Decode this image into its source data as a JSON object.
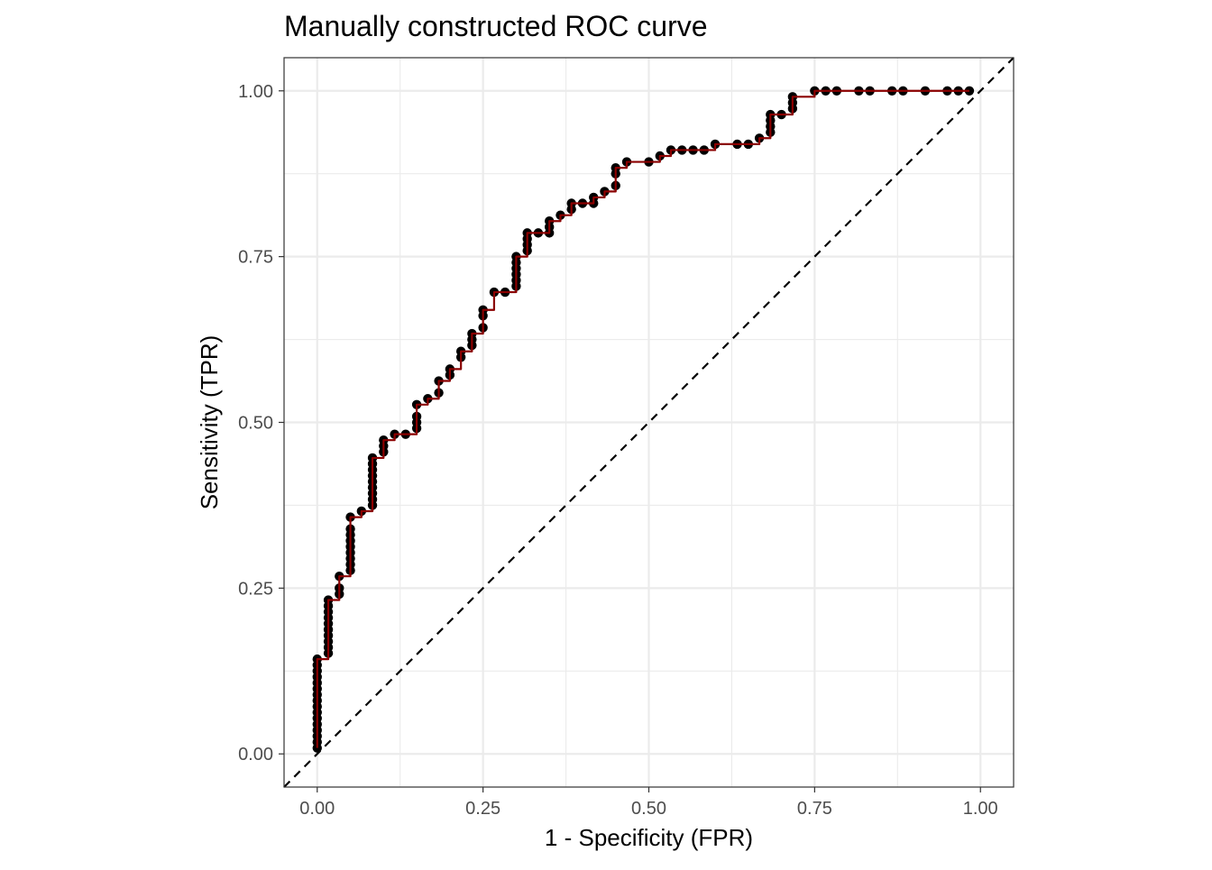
{
  "chart_data": {
    "type": "line",
    "title": "Manually constructed ROC curve",
    "xlabel": "1 - Specificity (FPR)",
    "ylabel": "Sensitivity (TPR)",
    "xlim": [
      -0.05,
      1.05
    ],
    "ylim": [
      -0.05,
      1.05
    ],
    "xticks": [
      0.0,
      0.25,
      0.5,
      0.75,
      1.0
    ],
    "xtick_labels": [
      "0.00",
      "0.25",
      "0.50",
      "0.75",
      "1.00"
    ],
    "yticks": [
      0.0,
      0.25,
      0.5,
      0.75,
      1.0
    ],
    "ytick_labels": [
      "0.00",
      "0.25",
      "0.50",
      "0.75",
      "1.00"
    ],
    "grid": true,
    "reference_line": {
      "name": "chance",
      "x": [
        -0.05,
        1.05
      ],
      "y": [
        -0.05,
        1.05
      ],
      "style": "dashed",
      "color": "#000000"
    },
    "series": [
      {
        "name": "ROC",
        "line_color": "#8b0000",
        "point_color": "#000000",
        "x": [
          0.0,
          0.0,
          0.0,
          0.0,
          0.0,
          0.0,
          0.0,
          0.0,
          0.0,
          0.0,
          0.0,
          0.0,
          0.0,
          0.0,
          0.0,
          0.0,
          0.0167,
          0.0167,
          0.0167,
          0.0167,
          0.0167,
          0.0167,
          0.0167,
          0.0167,
          0.0167,
          0.0167,
          0.0333,
          0.0333,
          0.0333,
          0.05,
          0.05,
          0.05,
          0.05,
          0.05,
          0.05,
          0.05,
          0.05,
          0.05,
          0.0667,
          0.0833,
          0.0833,
          0.0833,
          0.0833,
          0.0833,
          0.0833,
          0.0833,
          0.0833,
          0.0833,
          0.1,
          0.1,
          0.1,
          0.1167,
          0.1333,
          0.15,
          0.15,
          0.15,
          0.15,
          0.1667,
          0.1833,
          0.1833,
          0.2,
          0.2,
          0.2167,
          0.2167,
          0.2333,
          0.2333,
          0.2333,
          0.25,
          0.25,
          0.25,
          0.2667,
          0.2833,
          0.3,
          0.3,
          0.3,
          0.3,
          0.3,
          0.3,
          0.3167,
          0.3167,
          0.3167,
          0.3167,
          0.3333,
          0.35,
          0.35,
          0.35,
          0.3667,
          0.3833,
          0.3833,
          0.4,
          0.4167,
          0.4167,
          0.4333,
          0.45,
          0.45,
          0.45,
          0.4667,
          0.5,
          0.5167,
          0.5333,
          0.55,
          0.5667,
          0.5833,
          0.6,
          0.6333,
          0.65,
          0.6667,
          0.6833,
          0.6833,
          0.6833,
          0.6833,
          0.7,
          0.7167,
          0.7167,
          0.7167,
          0.75,
          0.7667,
          0.7833,
          0.8167,
          0.8333,
          0.8667,
          0.8833,
          0.9167,
          0.95,
          0.9667,
          0.9833
        ],
        "y": [
          0.0089,
          0.0179,
          0.0268,
          0.0357,
          0.0446,
          0.0536,
          0.0625,
          0.0714,
          0.0804,
          0.0893,
          0.0982,
          0.1071,
          0.1161,
          0.125,
          0.1339,
          0.1429,
          0.1518,
          0.1607,
          0.1696,
          0.1786,
          0.1875,
          0.1964,
          0.2054,
          0.2143,
          0.2232,
          0.2321,
          0.2411,
          0.25,
          0.2679,
          0.2768,
          0.2857,
          0.2946,
          0.3036,
          0.3125,
          0.3214,
          0.3304,
          0.3393,
          0.3571,
          0.3661,
          0.375,
          0.3839,
          0.3929,
          0.4018,
          0.4107,
          0.4196,
          0.4286,
          0.4375,
          0.4464,
          0.4554,
          0.4643,
          0.4732,
          0.4821,
          0.4821,
          0.4911,
          0.5,
          0.5089,
          0.5268,
          0.5357,
          0.5446,
          0.5625,
          0.5714,
          0.5804,
          0.5982,
          0.6071,
          0.6161,
          0.625,
          0.6339,
          0.6429,
          0.6607,
          0.6696,
          0.6964,
          0.6964,
          0.7054,
          0.7143,
          0.7232,
          0.7321,
          0.7411,
          0.75,
          0.7589,
          0.7679,
          0.7768,
          0.7857,
          0.7857,
          0.7857,
          0.7946,
          0.8036,
          0.8125,
          0.8214,
          0.8304,
          0.8304,
          0.8304,
          0.8393,
          0.8482,
          0.8571,
          0.875,
          0.8839,
          0.8929,
          0.8929,
          0.9018,
          0.9107,
          0.9107,
          0.9107,
          0.9107,
          0.9196,
          0.9196,
          0.9196,
          0.9286,
          0.9375,
          0.9464,
          0.9554,
          0.9643,
          0.9643,
          0.9732,
          0.9821,
          0.9911,
          1.0,
          1.0,
          1.0,
          1.0,
          1.0,
          1.0,
          1.0,
          1.0,
          1.0,
          1.0,
          1.0
        ]
      }
    ]
  }
}
